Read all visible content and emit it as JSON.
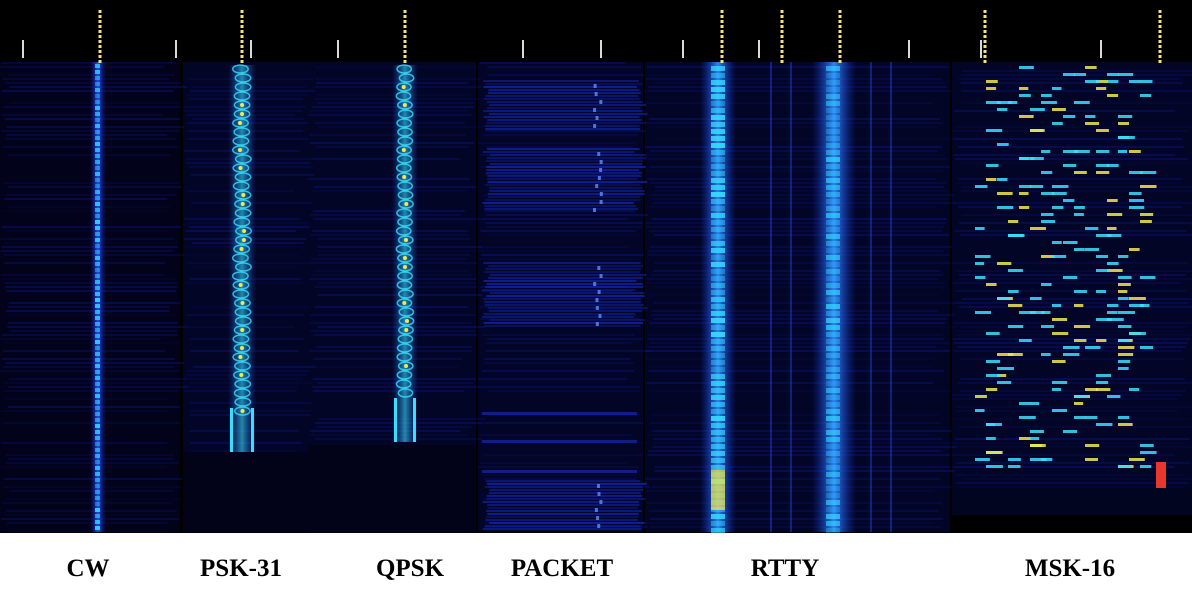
{
  "panels": [
    {
      "id": "cw",
      "label": "CW",
      "pattern": "carrier"
    },
    {
      "id": "psk31",
      "label": "PSK-31",
      "pattern": "phase-shift"
    },
    {
      "id": "qpsk",
      "label": "QPSK",
      "pattern": "phase-shift"
    },
    {
      "id": "packet",
      "label": "PACKET",
      "pattern": "bursts"
    },
    {
      "id": "rtty",
      "label": "RTTY",
      "pattern": "two-tone"
    },
    {
      "id": "msk16",
      "label": "MSK-16",
      "pattern": "multi-tone"
    }
  ],
  "colors": {
    "background": "#000000",
    "waterfall_base": "#03052b",
    "noise": "#0a1aa8",
    "signal_blue": "#1e6bff",
    "signal_cyan": "#38e0ff",
    "signal_yellow": "#f2e94a",
    "signal_red": "#e8372c",
    "marker_dotted": "#f4e27a",
    "tick": "#d9d9d9",
    "caption_bg": "#ffffff",
    "caption_text": "#000000"
  }
}
